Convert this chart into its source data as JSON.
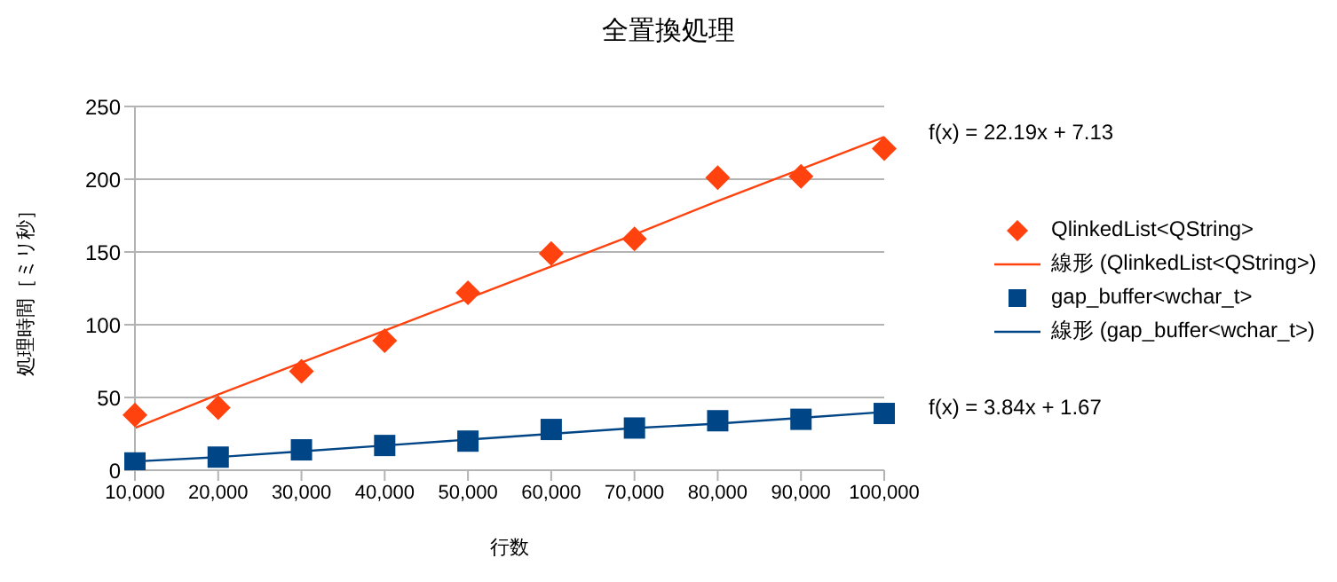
{
  "chart_data": {
    "type": "scatter",
    "title": "全置換処理",
    "xlabel": "行数",
    "ylabel": "処理時間［ミリ秒］",
    "categories": [
      "10,000",
      "20,000",
      "30,000",
      "40,000",
      "50,000",
      "60,000",
      "70,000",
      "80,000",
      "90,000",
      "100,000"
    ],
    "series": [
      {
        "name": "QlinkedList<QString>",
        "marker": "diamond",
        "color": "#ff420e",
        "values": [
          38,
          43,
          68,
          89,
          122,
          149,
          159,
          201,
          202,
          221
        ]
      },
      {
        "name": "線形 (QlinkedList<QString>)",
        "type": "line",
        "marker": "none",
        "color": "#ff420e",
        "values": [
          29,
          52,
          74,
          96,
          118,
          140,
          162,
          185,
          207,
          229
        ]
      },
      {
        "name": "gap_buffer<wchar_t>",
        "marker": "square",
        "color": "#004586",
        "values": [
          5,
          9,
          14,
          17,
          20,
          28,
          29,
          34,
          35,
          39
        ]
      },
      {
        "name": "線形 (gap_buffer<wchar_t>)",
        "type": "line",
        "marker": "none",
        "color": "#004586",
        "values": [
          6,
          9,
          13,
          17,
          21,
          25,
          29,
          32,
          36,
          40
        ]
      }
    ],
    "annotations": [
      {
        "text": "f(x) = 22.19x + 7.13",
        "x": "100,000",
        "y": 229
      },
      {
        "text": "f(x) = 3.84x + 1.67",
        "x": "100,000",
        "y": 40
      }
    ],
    "ylim": [
      0,
      250
    ],
    "yticks": [
      0,
      50,
      100,
      150,
      200,
      250
    ],
    "grid": "y",
    "legend": "right"
  }
}
